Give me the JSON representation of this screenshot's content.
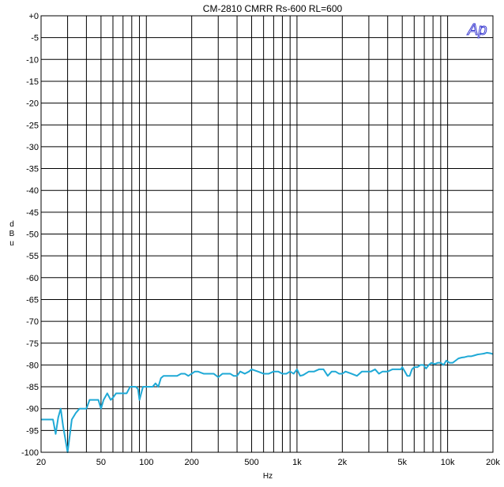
{
  "chart_data": {
    "type": "line",
    "title": "CM-2810 CMRR   Rs-600 RL=600",
    "xlabel": "Hz",
    "ylabel": "d\nB\nu",
    "xscale": "log",
    "xlim": [
      20,
      20000
    ],
    "ylim": [
      -100,
      0
    ],
    "grid": true,
    "x_ticks": [
      {
        "v": 20,
        "label": "20"
      },
      {
        "v": 50,
        "label": "50"
      },
      {
        "v": 100,
        "label": "100"
      },
      {
        "v": 200,
        "label": "200"
      },
      {
        "v": 500,
        "label": "500"
      },
      {
        "v": 1000,
        "label": "1k"
      },
      {
        "v": 2000,
        "label": "2k"
      },
      {
        "v": 5000,
        "label": "5k"
      },
      {
        "v": 10000,
        "label": "10k"
      },
      {
        "v": 20000,
        "label": "20k"
      }
    ],
    "y_ticks": [
      {
        "v": 0,
        "label": "+0"
      },
      {
        "v": -5,
        "label": "-5"
      },
      {
        "v": -10,
        "label": "-10"
      },
      {
        "v": -15,
        "label": "-15"
      },
      {
        "v": -20,
        "label": "-20"
      },
      {
        "v": -25,
        "label": "-25"
      },
      {
        "v": -30,
        "label": "-30"
      },
      {
        "v": -35,
        "label": "-35"
      },
      {
        "v": -40,
        "label": "-40"
      },
      {
        "v": -45,
        "label": "-45"
      },
      {
        "v": -50,
        "label": "-50"
      },
      {
        "v": -55,
        "label": "-55"
      },
      {
        "v": -60,
        "label": "-60"
      },
      {
        "v": -65,
        "label": "-65"
      },
      {
        "v": -70,
        "label": "-70"
      },
      {
        "v": -75,
        "label": "-75"
      },
      {
        "v": -80,
        "label": "-80"
      },
      {
        "v": -85,
        "label": "-85"
      },
      {
        "v": -90,
        "label": "-90"
      },
      {
        "v": -95,
        "label": "-95"
      },
      {
        "v": -100,
        "label": "-100"
      }
    ],
    "series": [
      {
        "color": "#1fa9d6",
        "x": [
          20,
          22,
          24,
          25,
          26,
          27,
          28,
          30,
          32,
          34,
          36,
          38,
          40,
          42,
          44,
          46,
          48,
          50,
          52,
          55,
          58,
          60,
          63,
          66,
          70,
          74,
          78,
          80,
          85,
          88,
          90,
          95,
          100,
          105,
          110,
          115,
          120,
          125,
          130,
          140,
          150,
          160,
          170,
          180,
          190,
          200,
          210,
          220,
          240,
          260,
          280,
          300,
          320,
          340,
          360,
          380,
          400,
          420,
          450,
          480,
          500,
          550,
          600,
          650,
          700,
          750,
          800,
          850,
          900,
          950,
          1000,
          1050,
          1100,
          1200,
          1300,
          1400,
          1500,
          1600,
          1700,
          1800,
          1900,
          2000,
          2100,
          2300,
          2500,
          2700,
          2900,
          3100,
          3300,
          3500,
          3700,
          4000,
          4300,
          4600,
          4900,
          5000,
          5200,
          5400,
          5600,
          5800,
          6000,
          6300,
          6600,
          6900,
          7200,
          7500,
          7800,
          8200,
          8600,
          9000,
          9400,
          9800,
          10300,
          10800,
          11300,
          11800,
          12400,
          13000,
          13700,
          14400,
          15100,
          15800,
          16600,
          17400,
          18200,
          19100,
          20000
        ],
        "y": [
          -92.5,
          -92.5,
          -92.5,
          -95.8,
          -92,
          -90,
          -94,
          -100,
          -92.5,
          -91,
          -90,
          -90,
          -90,
          -88,
          -88,
          -88,
          -88,
          -90,
          -88,
          -86.5,
          -88,
          -87.5,
          -86.5,
          -86.5,
          -86.5,
          -86.5,
          -85,
          -85,
          -85,
          -85.5,
          -88,
          -85,
          -85,
          -85,
          -85,
          -84.2,
          -85,
          -83,
          -82.5,
          -82.5,
          -82.5,
          -82.5,
          -82,
          -82,
          -82.5,
          -82,
          -81.5,
          -81.5,
          -82,
          -82,
          -82,
          -82.8,
          -82,
          -82,
          -82,
          -82.5,
          -82.5,
          -81.5,
          -82,
          -81.5,
          -81,
          -81.5,
          -82,
          -82,
          -81.5,
          -81.5,
          -82,
          -82,
          -81.5,
          -82,
          -81,
          -82.5,
          -82.3,
          -81.5,
          -81.5,
          -81,
          -81,
          -82.5,
          -81.5,
          -81.5,
          -82,
          -82,
          -81.5,
          -82,
          -82.5,
          -81.5,
          -81.5,
          -81.5,
          -81,
          -82,
          -81.5,
          -81.5,
          -81,
          -81,
          -81,
          -80.5,
          -81.5,
          -82.5,
          -82.5,
          -81,
          -80.5,
          -80.5,
          -80,
          -80,
          -80.8,
          -80,
          -79.5,
          -79.8,
          -79.5,
          -79.5,
          -80,
          -79,
          -79.5,
          -79.5,
          -79,
          -78.5,
          -78.3,
          -78.2,
          -78,
          -78,
          -77.8,
          -77.6,
          -77.5,
          -77.4,
          -77.2,
          -77.3,
          -77.5
        ]
      }
    ]
  },
  "logo": {
    "text": "Ap",
    "color": "#3a3ad0"
  }
}
